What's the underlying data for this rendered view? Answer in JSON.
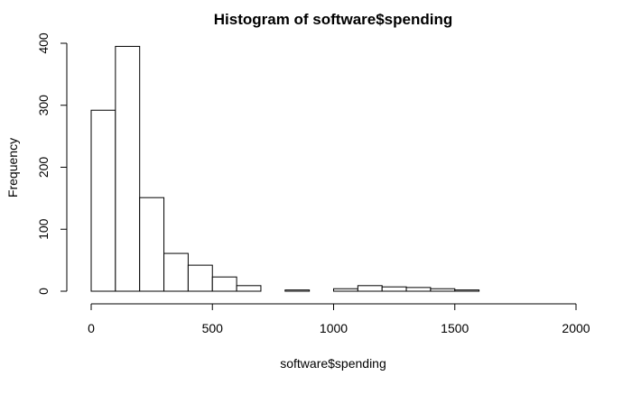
{
  "chart_data": {
    "type": "bar",
    "title": "Histogram of software$spending",
    "xlabel": "software$spending",
    "ylabel": "Frequency",
    "xlim": [
      0,
      2000
    ],
    "ylim": [
      0,
      400
    ],
    "x_ticks": [
      "0",
      "500",
      "1000",
      "1500",
      "2000"
    ],
    "y_ticks": [
      "0",
      "100",
      "200",
      "300",
      "400"
    ],
    "bin_width": 100,
    "bins": [
      {
        "start": 0,
        "end": 100,
        "count": 292
      },
      {
        "start": 100,
        "end": 200,
        "count": 395
      },
      {
        "start": 200,
        "end": 300,
        "count": 151
      },
      {
        "start": 300,
        "end": 400,
        "count": 61
      },
      {
        "start": 400,
        "end": 500,
        "count": 42
      },
      {
        "start": 500,
        "end": 600,
        "count": 23
      },
      {
        "start": 600,
        "end": 700,
        "count": 9
      },
      {
        "start": 700,
        "end": 800,
        "count": 0
      },
      {
        "start": 800,
        "end": 900,
        "count": 2
      },
      {
        "start": 900,
        "end": 1000,
        "count": 0
      },
      {
        "start": 1000,
        "end": 1100,
        "count": 4
      },
      {
        "start": 1100,
        "end": 1200,
        "count": 9
      },
      {
        "start": 1200,
        "end": 1300,
        "count": 7
      },
      {
        "start": 1300,
        "end": 1400,
        "count": 6
      },
      {
        "start": 1400,
        "end": 1500,
        "count": 4
      },
      {
        "start": 1500,
        "end": 1600,
        "count": 2
      },
      {
        "start": 1600,
        "end": 1700,
        "count": 0
      },
      {
        "start": 1700,
        "end": 1800,
        "count": 0
      },
      {
        "start": 1800,
        "end": 1900,
        "count": 0
      },
      {
        "start": 1900,
        "end": 2000,
        "count": 0
      }
    ],
    "grid": false,
    "legend": "none",
    "bar_fill": "#ffffff",
    "bar_stroke": "#000000"
  }
}
